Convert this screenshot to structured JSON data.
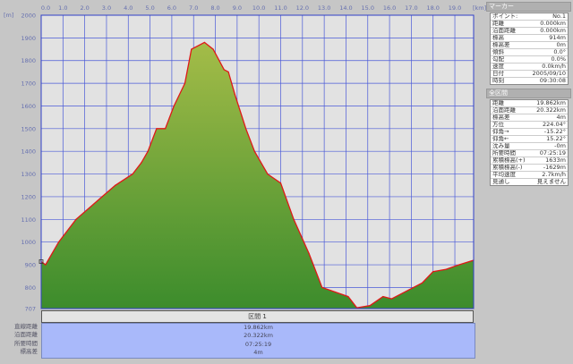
{
  "chart_data": {
    "type": "area",
    "ylabel": "[m]",
    "xlabel": "[km]",
    "ylim": [
      707,
      2000
    ],
    "xlim": [
      0,
      19.862
    ],
    "yticks": [
      2000,
      1900,
      1800,
      1700,
      1600,
      1500,
      1400,
      1300,
      1200,
      1100,
      1000,
      900,
      800,
      707
    ],
    "xticks": [
      "0.0",
      "1.0",
      "2.0",
      "3.0",
      "4.0",
      "5.0",
      "6.0",
      "7.0",
      "8.0",
      "9.0",
      "10.0",
      "11.0",
      "12.0",
      "13.0",
      "14.0",
      "15.0",
      "16.0",
      "17.0",
      "18.0",
      "19.0"
    ],
    "grid": true,
    "x": [
      0,
      0.2,
      0.8,
      1.6,
      2.2,
      2.8,
      3.4,
      4.2,
      4.6,
      4.9,
      5.3,
      5.7,
      6.1,
      6.6,
      6.9,
      7.5,
      7.9,
      8.4,
      8.6,
      8.9,
      9.4,
      9.8,
      10.4,
      11.0,
      11.6,
      12.3,
      12.9,
      13.5,
      14.1,
      14.5,
      15.1,
      15.7,
      16.1,
      16.9,
      17.5,
      18.0,
      18.6,
      19.2,
      19.862
    ],
    "y": [
      914,
      900,
      1000,
      1100,
      1150,
      1200,
      1250,
      1300,
      1350,
      1400,
      1500,
      1500,
      1600,
      1700,
      1850,
      1880,
      1850,
      1760,
      1750,
      1650,
      1500,
      1400,
      1300,
      1260,
      1100,
      950,
      800,
      780,
      760,
      710,
      720,
      760,
      750,
      790,
      820,
      870,
      880,
      900,
      920
    ],
    "colors": {
      "line": "#e01818",
      "fill_top": "#a4bc48",
      "fill_bottom": "#3c8c2c",
      "grid": "#4a5ad8",
      "plot_bg": "#e2e2e2"
    }
  },
  "marker": {
    "title": "マーカー",
    "rows": [
      {
        "k": "ポイント:",
        "v": "No.1"
      },
      {
        "k": "距離",
        "v": "0.000km"
      },
      {
        "k": "沿面距離",
        "v": "0.000km"
      },
      {
        "k": "標高",
        "v": "914m"
      },
      {
        "k": "標高差",
        "v": "0m"
      },
      {
        "k": "傾斜",
        "v": "0.0°"
      },
      {
        "k": "勾配",
        "v": "0.0%"
      },
      {
        "k": "速度",
        "v": "0.0km/h"
      },
      {
        "k": "日付",
        "v": "2005/09/10"
      },
      {
        "k": "時刻",
        "v": "09:30:08"
      }
    ]
  },
  "total": {
    "title": "全区間",
    "rows": [
      {
        "k": "距離",
        "v": "19.862km"
      },
      {
        "k": "沿面距離",
        "v": "20.322km"
      },
      {
        "k": "標高差",
        "v": "4m"
      },
      {
        "k": "方位",
        "v": "224.04°"
      },
      {
        "k": "仰角→",
        "v": "-15.22°"
      },
      {
        "k": "仰角←",
        "v": "15.22°"
      },
      {
        "k": "沈み量",
        "v": "-0m"
      },
      {
        "k": "所要時間",
        "v": "07:25:19"
      },
      {
        "k": "累積標高(+)",
        "v": "1633m"
      },
      {
        "k": "累積標高(-)",
        "v": "-1629m"
      },
      {
        "k": "平均速度",
        "v": "2.7km/h"
      },
      {
        "k": "見通し",
        "v": "見えません"
      }
    ]
  },
  "section": {
    "title": "区間 1",
    "labels": [
      "直線距離",
      "沿面距離",
      "所要時間",
      "標高差"
    ],
    "values": [
      "19.862km",
      "20.322km",
      "07:25:19",
      "4m"
    ]
  }
}
